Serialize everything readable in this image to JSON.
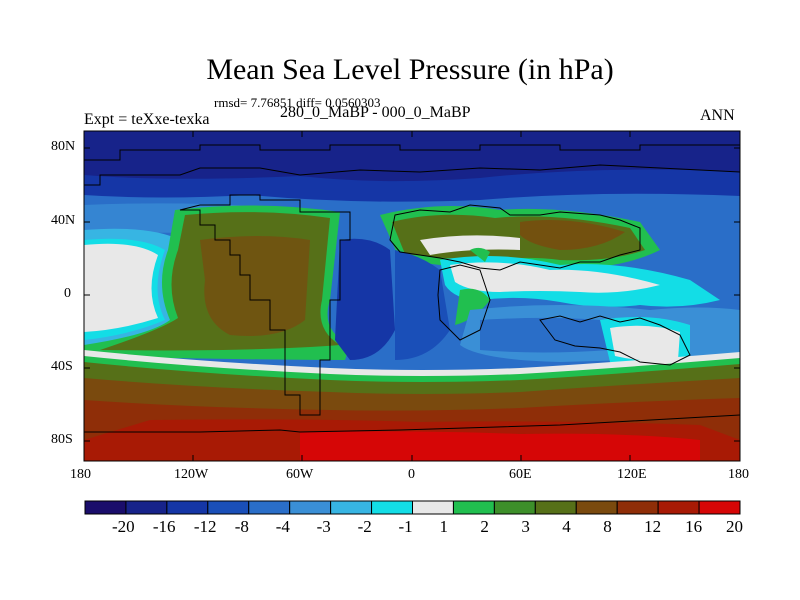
{
  "title": "Mean Sea Level Pressure (in hPa)",
  "stats": "rmsd= 7.76851 diff= 0.0560303",
  "subtitle": "280_0_MaBP - 000_0_MaBP",
  "left_label": "Expt = teXxe-texka",
  "right_label": "ANN",
  "lat_ticks": [
    "80N",
    "40N",
    "0",
    "40S",
    "80S"
  ],
  "lon_ticks": [
    "180",
    "120W",
    "60W",
    "0",
    "60E",
    "120E",
    "180"
  ],
  "colorbar": {
    "labels": [
      "-20",
      "-16",
      "-12",
      "-8",
      "-4",
      "-3",
      "-2",
      "-1",
      "1",
      "2",
      "3",
      "4",
      "8",
      "12",
      "16",
      "20"
    ],
    "colors": [
      "#1a0d6b",
      "#17238a",
      "#1536a6",
      "#1a4fb8",
      "#2a6ec8",
      "#3a8fd6",
      "#37b5e3",
      "#13dde6",
      "#e8e8e8",
      "#21bf4f",
      "#3d8f2a",
      "#567018",
      "#7a4a0e",
      "#8f2e08",
      "#a81a05",
      "#d60606"
    ]
  }
}
